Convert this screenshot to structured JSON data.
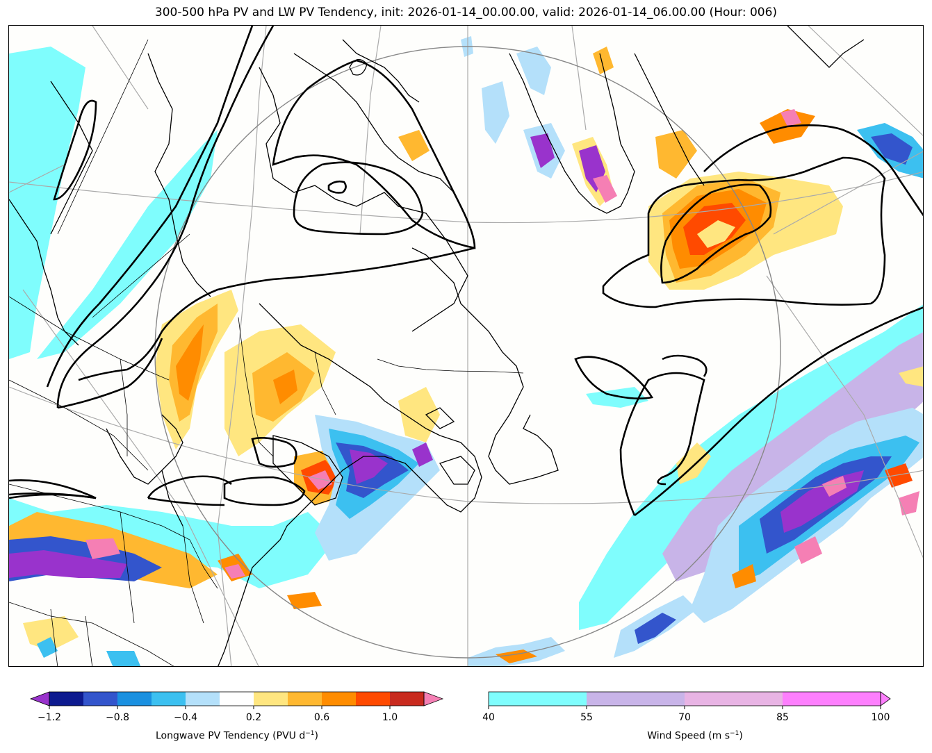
{
  "title": "300-500 hPa PV and LW PV Tendency, init: 2026-01-14_00.00.00, valid: 2026-01-14_06.00.00 (Hour: 006)",
  "pv_colorbar": {
    "label": "Longwave PV Tendency (PVU d",
    "label_exp": "−1",
    "label_close": ")",
    "ticks": [
      "−1.2",
      "−0.8",
      "−0.4",
      "0.2",
      "0.6",
      "1.0"
    ],
    "colors": [
      "#0d1a8f",
      "#3355cc",
      "#1a90e0",
      "#3cc0f0",
      "#b4e0fa",
      "#ffffff",
      "#ffe680",
      "#ffb830",
      "#ff8c00",
      "#ff4a00",
      "#c82a1e"
    ],
    "under_color": "#9933cc",
    "over_color": "#f57fb4"
  },
  "wind_colorbar": {
    "label": "Wind Speed (m s",
    "label_exp": "−1",
    "label_close": ")",
    "ticks": [
      "40",
      "55",
      "70",
      "85",
      "100"
    ],
    "colors": [
      "#7ffdfd",
      "#c8b4e8",
      "#e8b4e4",
      "#fd7ffd"
    ],
    "over_color": "#fd7ffd"
  }
}
